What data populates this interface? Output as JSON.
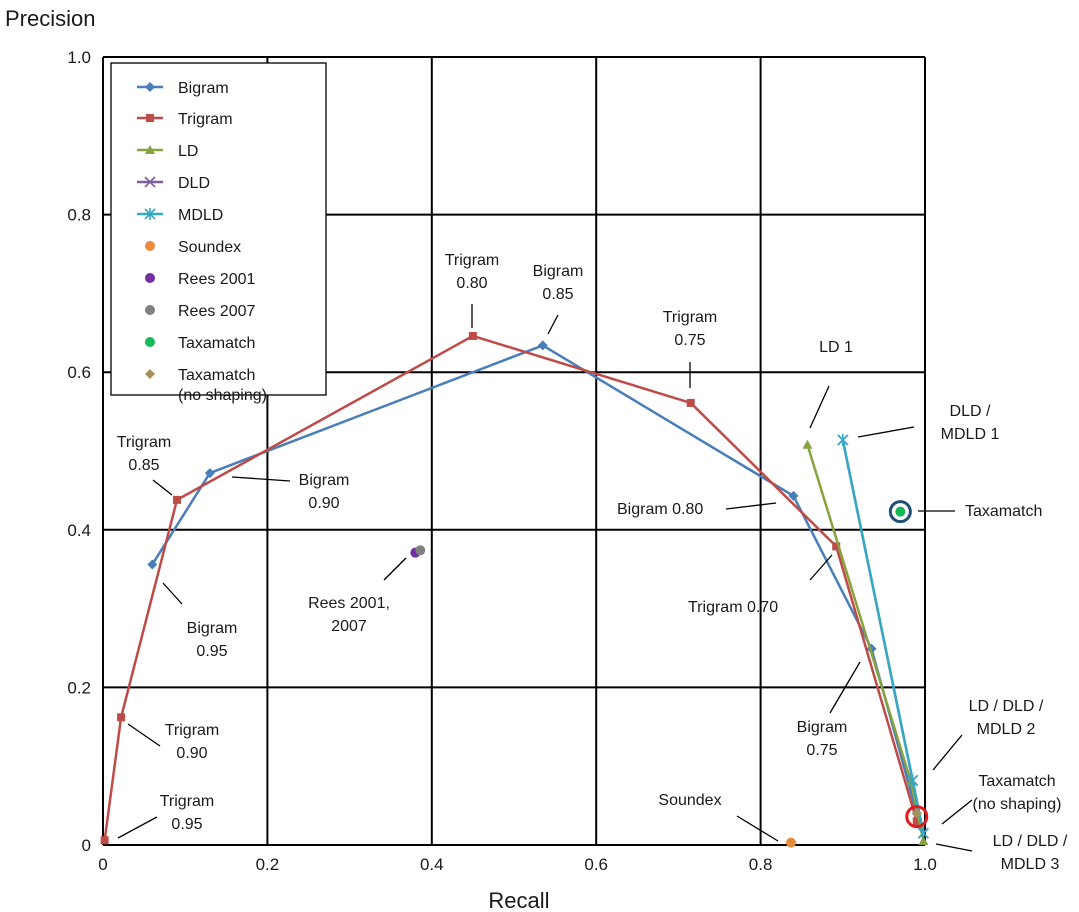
{
  "chart_data": {
    "type": "line",
    "title": "",
    "xlabel": "Recall",
    "ylabel": "Precision",
    "xlim": [
      0,
      1
    ],
    "ylim": [
      0,
      1
    ],
    "x_ticks": [
      "0",
      "0.2",
      "0.4",
      "0.6",
      "0.8",
      "1.0"
    ],
    "y_ticks": [
      "0",
      "0.2",
      "0.4",
      "0.6",
      "0.8",
      "1.0"
    ],
    "grid": true,
    "legend_position": "top-left",
    "series": [
      {
        "name": "Bigram",
        "color": "#4a7ebb",
        "marker": "diamond",
        "line": true,
        "points": [
          [
            0.06,
            0.356
          ],
          [
            0.13,
            0.472
          ],
          [
            0.535,
            0.634
          ],
          [
            0.84,
            0.443
          ],
          [
            0.935,
            0.249
          ],
          [
            0.99,
            0.04
          ]
        ]
      },
      {
        "name": "Trigram",
        "color": "#be4b48",
        "marker": "square",
        "line": true,
        "points": [
          [
            0.002,
            0.006
          ],
          [
            0.022,
            0.162
          ],
          [
            0.09,
            0.438
          ],
          [
            0.45,
            0.646
          ],
          [
            0.715,
            0.561
          ],
          [
            0.892,
            0.379
          ],
          [
            0.99,
            0.03
          ]
        ]
      },
      {
        "name": "LD",
        "color": "#88a33d",
        "marker": "triangle",
        "line": true,
        "points": [
          [
            0.857,
            0.508
          ],
          [
            0.983,
            0.08
          ],
          [
            0.998,
            0.005
          ]
        ]
      },
      {
        "name": "DLD",
        "color": "#7d5fa0",
        "marker": "x",
        "line": true,
        "points": [
          [
            0.9,
            0.514
          ],
          [
            0.985,
            0.082
          ],
          [
            0.998,
            0.015
          ]
        ]
      },
      {
        "name": "MDLD",
        "color": "#34a9c4",
        "marker": "star",
        "line": true,
        "points": [
          [
            0.9,
            0.514
          ],
          [
            0.985,
            0.082
          ],
          [
            0.998,
            0.015
          ]
        ]
      },
      {
        "name": "Soundex",
        "color": "#e88b3c",
        "marker": "circle",
        "line": false,
        "points": [
          [
            0.837,
            0.003
          ]
        ]
      },
      {
        "name": "Rees 2001",
        "color": "#7030a0",
        "marker": "circle",
        "line": false,
        "points": [
          [
            0.38,
            0.371
          ]
        ]
      },
      {
        "name": "Rees 2007",
        "color": "#808080",
        "marker": "circle",
        "line": false,
        "points": [
          [
            0.386,
            0.374
          ]
        ]
      },
      {
        "name": "Taxamatch",
        "color": "#17b857",
        "marker": "circle",
        "line": false,
        "points": [
          [
            0.97,
            0.423
          ]
        ]
      },
      {
        "name": "Taxamatch\n(no shaping)",
        "color": "#a3925a",
        "marker": "diamond",
        "line": false,
        "points": [
          [
            0.99,
            0.04
          ]
        ]
      }
    ],
    "annotations": [
      {
        "text": "Trigram\n0.95"
      },
      {
        "text": "Trigram\n0.90"
      },
      {
        "text": "Trigram\n0.85"
      },
      {
        "text": "Bigram\n0.90"
      },
      {
        "text": "Bigram\n0.95"
      },
      {
        "text": "Rees 2001,\n2007"
      },
      {
        "text": "Trigram\n0.80"
      },
      {
        "text": "Bigram\n0.85"
      },
      {
        "text": "Trigram\n0.75"
      },
      {
        "text": "LD 1"
      },
      {
        "text": "DLD /\nMDLD 1"
      },
      {
        "text": "Taxamatch"
      },
      {
        "text": "Bigram 0.80"
      },
      {
        "text": "Trigram  0.70"
      },
      {
        "text": "Bigram\n0.75"
      },
      {
        "text": "LD / DLD /\nMDLD 2"
      },
      {
        "text": "Taxamatch\n(no shaping)"
      },
      {
        "text": "Soundex"
      },
      {
        "text": "LD / DLD /\nMDLD 3"
      }
    ],
    "highlight_circles": [
      {
        "x": 0.97,
        "y": 0.423,
        "color": "#1f4e79"
      },
      {
        "x": 0.99,
        "y": 0.036,
        "color": "#e31a1c"
      }
    ]
  }
}
